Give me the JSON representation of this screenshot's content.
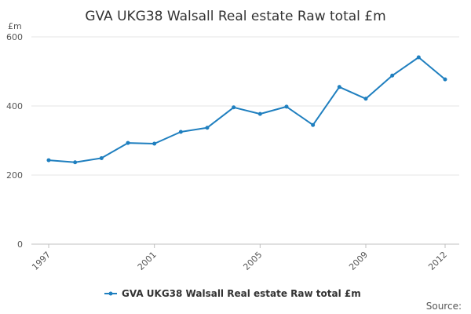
{
  "chart_data": {
    "type": "line",
    "title": "GVA UKG38 Walsall Real estate Raw total £m",
    "ylabel": "£m",
    "xlabel": "",
    "x": [
      1997,
      1998,
      1999,
      2000,
      2001,
      2002,
      2003,
      2004,
      2005,
      2006,
      2007,
      2008,
      2009,
      2010,
      2011,
      2012
    ],
    "x_ticks": [
      "1997",
      "2001",
      "2005",
      "2009",
      "2012"
    ],
    "y_ticks": [
      "0",
      "200",
      "400",
      "600"
    ],
    "ylim": [
      0,
      600
    ],
    "grid": true,
    "legend_position": "bottom-center",
    "series": [
      {
        "name": "GVA UKG38 Walsall Real estate Raw total £m",
        "color": "#1f7fbf",
        "values": [
          243,
          237,
          249,
          293,
          291,
          325,
          337,
          396,
          377,
          398,
          345,
          455,
          421,
          488,
          541,
          477
        ]
      }
    ]
  },
  "footer": {
    "source_label": "Source:"
  }
}
